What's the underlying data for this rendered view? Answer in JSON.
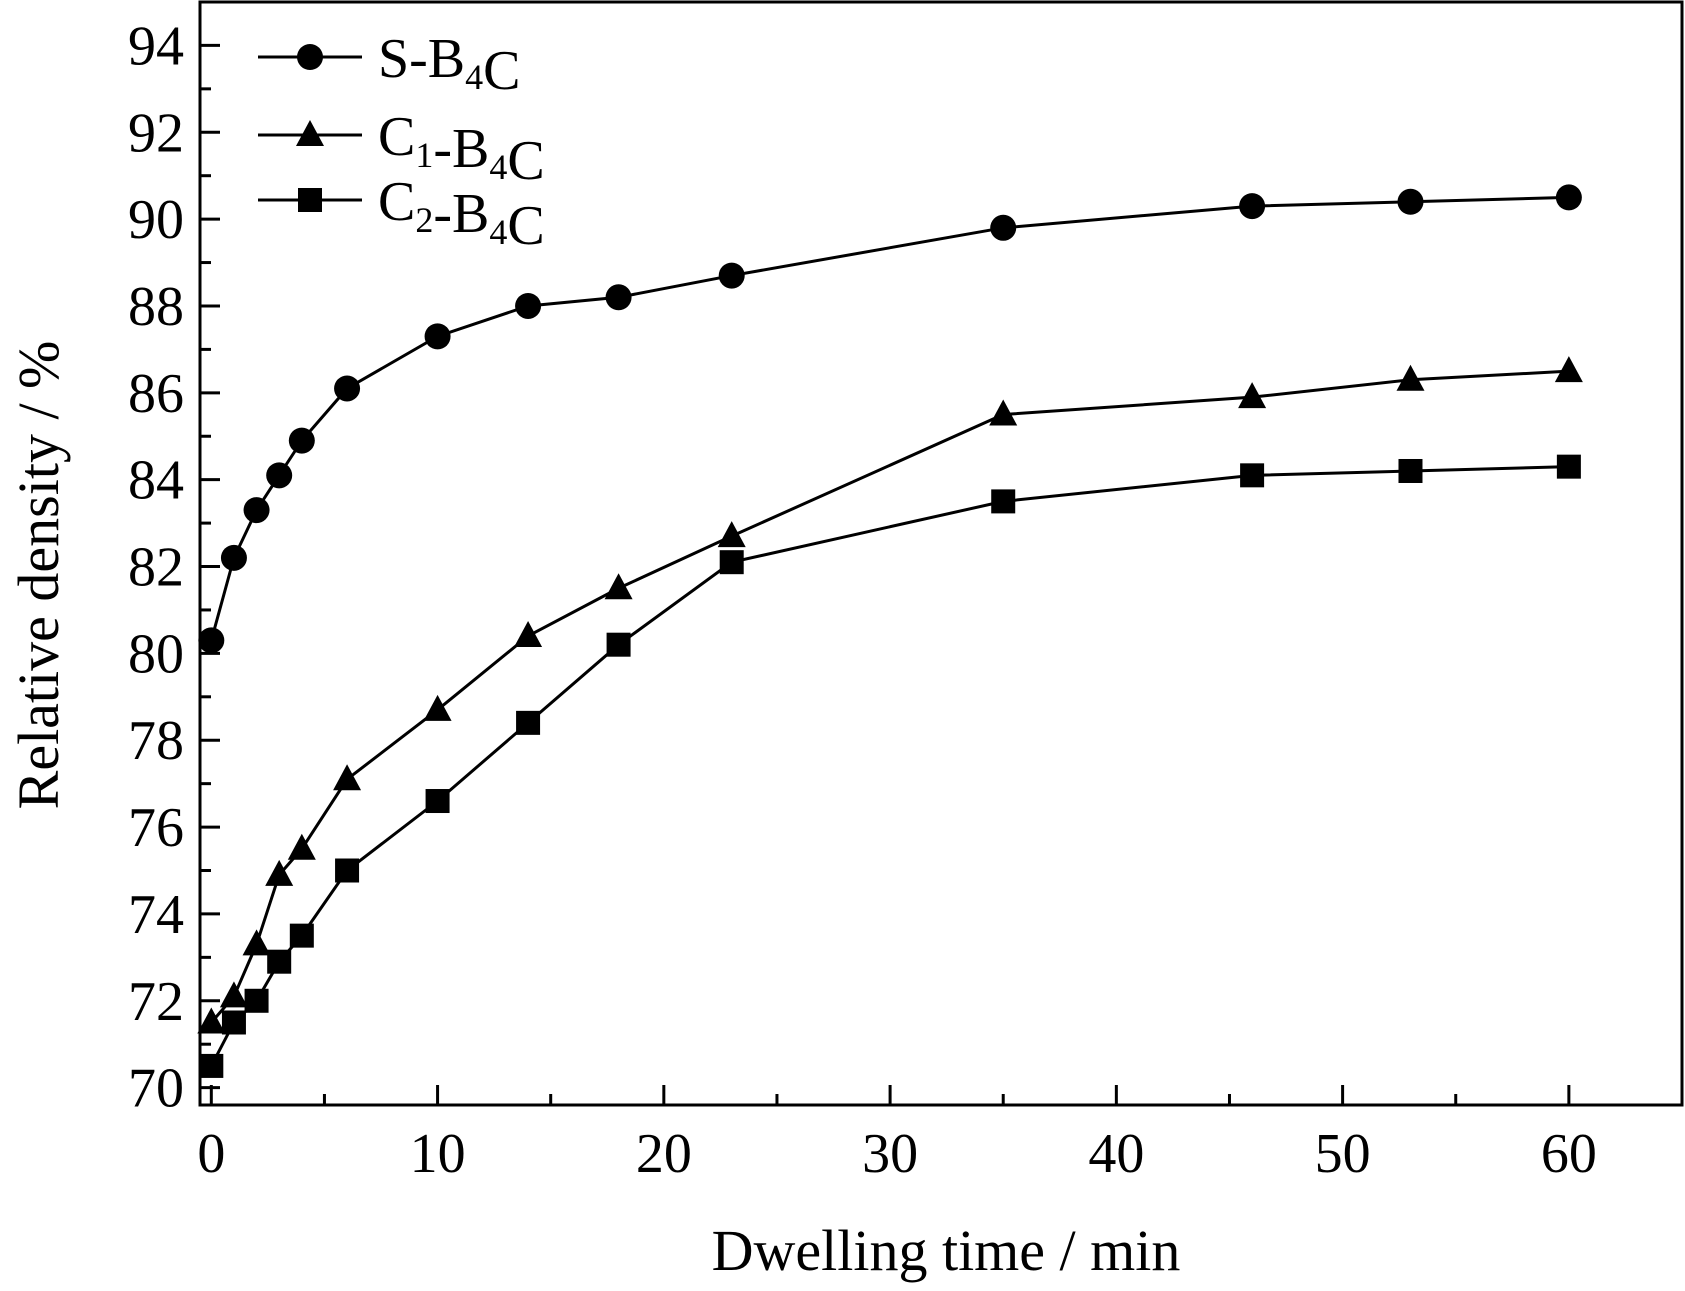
{
  "chart_data": {
    "type": "line",
    "title": "",
    "xlabel": "Dwelling time / min",
    "ylabel": "Relative density / %",
    "xlim": [
      -0.5,
      65
    ],
    "ylim": [
      69.6,
      95
    ],
    "xticks": [
      0,
      10,
      20,
      30,
      40,
      50,
      60
    ],
    "yticks": [
      70,
      72,
      74,
      76,
      78,
      80,
      82,
      84,
      86,
      88,
      90,
      92,
      94
    ],
    "grid": false,
    "legend_position": "top-left",
    "series": [
      {
        "name": "S-B4C",
        "label_main": "S-B",
        "label_sub": "4",
        "label_tail": "C",
        "marker": "circle",
        "color": "#000000",
        "x": [
          0,
          1,
          2,
          3,
          4,
          6,
          10,
          14,
          18,
          23,
          35,
          46,
          53,
          60
        ],
        "y": [
          80.3,
          82.2,
          83.3,
          84.1,
          84.9,
          86.1,
          87.3,
          88.0,
          88.2,
          88.7,
          89.8,
          90.3,
          90.4,
          90.5
        ]
      },
      {
        "name": "C1-B4C",
        "label_main": "C",
        "label_sub": "1",
        "label_mid": "-B",
        "label_sub2": "4",
        "label_tail": "C",
        "marker": "triangle",
        "color": "#000000",
        "x": [
          0,
          1,
          2,
          3,
          4,
          6,
          10,
          14,
          18,
          23,
          35,
          46,
          53,
          60
        ],
        "y": [
          71.5,
          72.1,
          73.3,
          74.9,
          75.5,
          77.1,
          78.7,
          80.4,
          81.5,
          82.7,
          85.5,
          85.9,
          86.3,
          86.5
        ]
      },
      {
        "name": "C2-B4C",
        "label_main": "C",
        "label_sub": "2",
        "label_mid": "-B",
        "label_sub2": "4",
        "label_tail": "C",
        "marker": "square",
        "color": "#000000",
        "x": [
          0,
          1,
          2,
          3,
          4,
          6,
          10,
          14,
          18,
          23,
          35,
          46,
          53,
          60
        ],
        "y": [
          70.5,
          71.5,
          72.0,
          72.9,
          73.5,
          75.0,
          76.6,
          78.4,
          80.2,
          82.1,
          83.5,
          84.1,
          84.2,
          84.3
        ]
      }
    ]
  }
}
